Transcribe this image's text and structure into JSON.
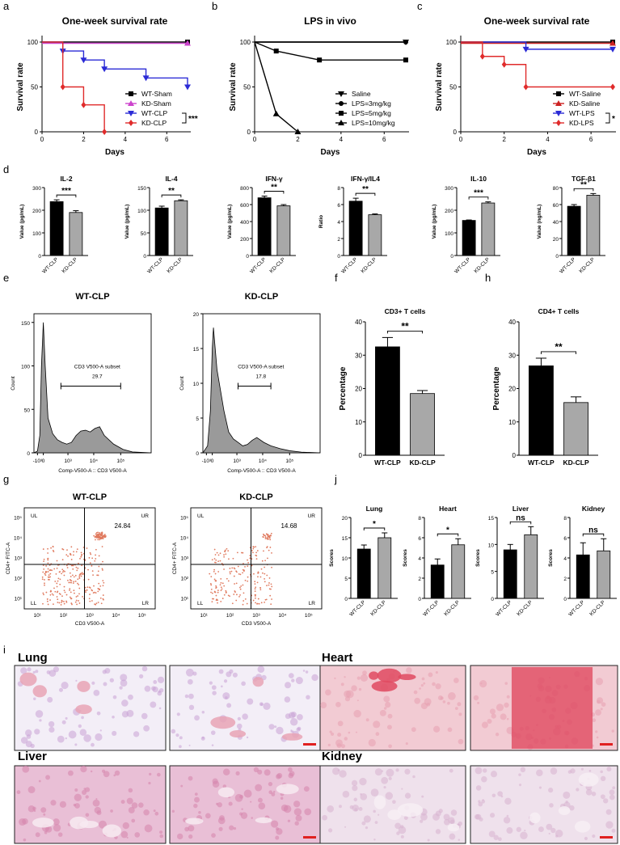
{
  "chart_data": [
    {
      "id": "a",
      "type": "line",
      "panel": "a",
      "title": "One-week survival rate",
      "xlabel": "Days",
      "ylabel": "Survival rate",
      "xlim": [
        0,
        7
      ],
      "ylim": [
        0,
        100
      ],
      "xticks": [
        "0",
        "2",
        "4",
        "6"
      ],
      "yticks": [
        "0",
        "50",
        "100"
      ],
      "series": [
        {
          "name": "WT-Sham",
          "color": "#000000",
          "marker": "square",
          "x": [
            0,
            7
          ],
          "y": [
            100,
            100
          ]
        },
        {
          "name": "KD-Sham",
          "color": "#cc44cc",
          "marker": "triangle",
          "x": [
            0,
            7
          ],
          "y": [
            100,
            100
          ]
        },
        {
          "name": "WT-CLP",
          "color": "#2b2bd6",
          "marker": "triangle-down",
          "x": [
            0,
            1,
            2,
            3,
            5,
            7
          ],
          "y": [
            100,
            90,
            80,
            70,
            60,
            50
          ]
        },
        {
          "name": "KD-CLP",
          "color": "#e02b2b",
          "marker": "diamond",
          "x": [
            0,
            1,
            2,
            3
          ],
          "y": [
            100,
            50,
            30,
            0
          ]
        }
      ],
      "annotation": "***"
    },
    {
      "id": "b",
      "type": "line",
      "panel": "b",
      "title": "LPS in vivo",
      "xlabel": "Days",
      "ylabel": "Survival rate",
      "xlim": [
        0,
        7
      ],
      "ylim": [
        0,
        100
      ],
      "xticks": [
        "0",
        "2",
        "4",
        "6"
      ],
      "yticks": [
        "0",
        "50",
        "100"
      ],
      "series": [
        {
          "name": "Saline",
          "color": "#000000",
          "marker": "triangle-down",
          "x": [
            0,
            7
          ],
          "y": [
            100,
            100
          ]
        },
        {
          "name": "LPS=3mg/kg",
          "color": "#000000",
          "marker": "circle",
          "x": [
            0,
            7
          ],
          "y": [
            100,
            100
          ]
        },
        {
          "name": "LPS=5mg/kg",
          "color": "#000000",
          "marker": "square",
          "x": [
            0,
            1,
            3,
            7
          ],
          "y": [
            100,
            90,
            80,
            80
          ]
        },
        {
          "name": "LPS=10mg/kg",
          "color": "#000000",
          "marker": "triangle",
          "x": [
            0,
            1,
            2
          ],
          "y": [
            100,
            20,
            0
          ]
        }
      ]
    },
    {
      "id": "c",
      "type": "line",
      "panel": "c",
      "title": "One-week survival rate",
      "xlabel": "Days",
      "ylabel": "Survival rate",
      "xlim": [
        0,
        7
      ],
      "ylim": [
        0,
        100
      ],
      "xticks": [
        "0",
        "2",
        "4",
        "6"
      ],
      "yticks": [
        "0",
        "50",
        "100"
      ],
      "series": [
        {
          "name": "WT-Saline",
          "color": "#000000",
          "marker": "square",
          "x": [
            0,
            7
          ],
          "y": [
            100,
            100
          ]
        },
        {
          "name": "KD-Saline",
          "color": "#cc2222",
          "marker": "triangle",
          "x": [
            0,
            7
          ],
          "y": [
            100,
            100
          ]
        },
        {
          "name": "WT-LPS",
          "color": "#2b2bd6",
          "marker": "triangle-down",
          "x": [
            0,
            3,
            7
          ],
          "y": [
            100,
            92,
            92
          ]
        },
        {
          "name": "KD-LPS",
          "color": "#e02b2b",
          "marker": "diamond",
          "x": [
            0,
            1,
            2,
            3,
            7
          ],
          "y": [
            100,
            84,
            75,
            50,
            50
          ]
        }
      ],
      "annotation": "*"
    },
    {
      "id": "d1",
      "type": "bar",
      "panel": "d",
      "title": "IL-2",
      "ylabel": "Value (pg/mL)",
      "categories": [
        "WT-CLP",
        "KD-CLP"
      ],
      "values": [
        238,
        190
      ],
      "errors": [
        8,
        8
      ],
      "ylim": [
        0,
        300
      ],
      "yticks": [
        "0",
        "100",
        "200",
        "300"
      ],
      "annotation": "***"
    },
    {
      "id": "d2",
      "type": "bar",
      "title": "IL-4",
      "ylabel": "Value (pg/mL)",
      "categories": [
        "WT-CLP",
        "KD-CLP"
      ],
      "values": [
        105,
        121
      ],
      "errors": [
        4,
        2
      ],
      "ylim": [
        0,
        150
      ],
      "yticks": [
        "0",
        "50",
        "100",
        "150"
      ],
      "annotation": "**"
    },
    {
      "id": "d3",
      "type": "bar",
      "title": "IFN-γ",
      "ylabel": "Value (pg/mL)",
      "categories": [
        "WT-CLP",
        "KD-CLP"
      ],
      "values": [
        680,
        585
      ],
      "errors": [
        20,
        15
      ],
      "ylim": [
        0,
        800
      ],
      "yticks": [
        "0",
        "200",
        "400",
        "600",
        "800"
      ],
      "annotation": "**"
    },
    {
      "id": "d4",
      "type": "bar",
      "title": "IFN-γ/IL4",
      "ylabel": "Ratio",
      "categories": [
        "WT-CLP",
        "KD-CLP"
      ],
      "values": [
        6.4,
        4.8
      ],
      "errors": [
        0.35,
        0.1
      ],
      "ylim": [
        0,
        8
      ],
      "yticks": [
        "0",
        "2",
        "4",
        "6",
        "8"
      ],
      "annotation": "**"
    },
    {
      "id": "d5",
      "type": "bar",
      "title": "IL-10",
      "ylabel": "Value (pg/mL)",
      "categories": [
        "WT-CLP",
        "KD-CLP"
      ],
      "values": [
        155,
        232
      ],
      "errors": [
        2,
        5
      ],
      "ylim": [
        0,
        300
      ],
      "yticks": [
        "0",
        "100",
        "200",
        "300"
      ],
      "annotation": "***"
    },
    {
      "id": "d6",
      "type": "bar",
      "title": "TGF-β1",
      "ylabel": "Value (ng/mL)",
      "categories": [
        "WT-CLP",
        "KD-CLP"
      ],
      "values": [
        58,
        71
      ],
      "errors": [
        2,
        2
      ],
      "ylim": [
        0,
        80
      ],
      "yticks": [
        "0",
        "20",
        "40",
        "60",
        "80"
      ],
      "annotation": "**"
    },
    {
      "id": "e1",
      "type": "area",
      "panel": "e",
      "title": "WT-CLP",
      "xlabel": "Comp-V500-A :: CD3 V500-A",
      "ylabel": "Count",
      "gate_label": "CD3 V500-A subset",
      "gate_value": "29.7",
      "ylim": [
        0,
        160
      ],
      "yticks": [
        "0",
        "50",
        "100",
        "150"
      ],
      "xticks": [
        "-10³",
        "0",
        "10³",
        "10⁴",
        "10⁵"
      ],
      "x": [
        0,
        0.15,
        0.25,
        0.32,
        0.4,
        0.48,
        0.6,
        0.8,
        1,
        1.2,
        1.4,
        1.6,
        1.8,
        2,
        2.2,
        2.4,
        2.6,
        2.8,
        3,
        3.4,
        3.8,
        4.2,
        5
      ],
      "y": [
        0,
        2,
        20,
        100,
        150,
        100,
        40,
        22,
        15,
        12,
        10,
        12,
        20,
        25,
        26,
        24,
        28,
        30,
        20,
        10,
        4,
        1,
        0
      ]
    },
    {
      "id": "e2",
      "type": "area",
      "title": "KD-CLP",
      "xlabel": "Comp-V500-A :: CD3 V500-A",
      "ylabel": "Count",
      "gate_label": "CD3 V500-A subset",
      "gate_value": "17.8",
      "ylim": [
        0,
        20
      ],
      "yticks": [
        "0",
        "5",
        "10",
        "15",
        "20"
      ],
      "xticks": [
        "-10³",
        "0",
        "10³",
        "10⁴",
        "10⁵"
      ],
      "x": [
        0,
        0.2,
        0.32,
        0.4,
        0.45,
        0.5,
        0.6,
        0.75,
        0.9,
        1.1,
        1.3,
        1.5,
        1.7,
        1.9,
        2.1,
        2.3,
        2.6,
        2.9,
        3.3,
        3.7,
        4.2,
        5
      ],
      "y": [
        0,
        1,
        6,
        15,
        18,
        16,
        12,
        9,
        6,
        3,
        2,
        1.5,
        1,
        1.2,
        1.8,
        2.2,
        1.5,
        1,
        0.6,
        0.3,
        0.1,
        0
      ]
    },
    {
      "id": "f",
      "type": "bar",
      "panel": "f",
      "title": "CD3+ T cells",
      "ylabel": "Percentage",
      "categories": [
        "WT-CLP",
        "KD-CLP"
      ],
      "values": [
        32.5,
        18.5
      ],
      "errors": [
        2.8,
        0.9
      ],
      "ylim": [
        0,
        40
      ],
      "yticks": [
        "0",
        "10",
        "20",
        "30",
        "40"
      ],
      "annotation": "**"
    },
    {
      "id": "h",
      "type": "bar",
      "panel": "h",
      "title": "CD4+ T cells",
      "ylabel": "Percentage",
      "categories": [
        "WT-CLP",
        "KD-CLP"
      ],
      "values": [
        26.8,
        15.8
      ],
      "errors": [
        2.3,
        1.7
      ],
      "ylim": [
        0,
        40
      ],
      "yticks": [
        "0",
        "10",
        "20",
        "30",
        "40"
      ],
      "annotation": "**"
    },
    {
      "id": "g1",
      "type": "scatter",
      "panel": "g",
      "title": "WT-CLP",
      "xlabel": "CD3 V500-A",
      "ylabel": "CD4+ FITC-A",
      "value": "24.84",
      "quadrants": [
        "UL",
        "UR",
        "LL",
        "LR"
      ],
      "xticks": [
        "10¹",
        "10²",
        "10³",
        "10⁴",
        "10⁵"
      ],
      "yticks": [
        "10¹",
        "10²",
        "10³",
        "10⁴",
        "10⁵"
      ]
    },
    {
      "id": "g2",
      "type": "scatter",
      "title": "KD-CLP",
      "xlabel": "CD3 V500-A",
      "ylabel": "CD4+ FITC-A",
      "value": "14.68",
      "quadrants": [
        "UL",
        "UR",
        "LL",
        "LR"
      ],
      "xticks": [
        "10¹",
        "10²",
        "10³",
        "10⁴",
        "10⁵"
      ],
      "yticks": [
        "10¹",
        "10²",
        "10³",
        "10⁴",
        "10⁵"
      ]
    },
    {
      "id": "j1",
      "type": "bar",
      "panel": "j",
      "title": "Lung",
      "ylabel": "Scores",
      "categories": [
        "WT-CLP",
        "KD-CLP"
      ],
      "values": [
        12.2,
        15
      ],
      "errors": [
        1,
        1.2
      ],
      "ylim": [
        0,
        20
      ],
      "yticks": [
        "0",
        "5",
        "10",
        "15",
        "20"
      ],
      "annotation": "*"
    },
    {
      "id": "j2",
      "type": "bar",
      "title": "Heart",
      "ylabel": "Scores",
      "categories": [
        "WT-CLP",
        "KD-CLP"
      ],
      "values": [
        3.3,
        5.3
      ],
      "errors": [
        0.6,
        0.6
      ],
      "ylim": [
        0,
        8
      ],
      "yticks": [
        "0",
        "2",
        "4",
        "6",
        "8"
      ],
      "annotation": "*"
    },
    {
      "id": "j3",
      "type": "bar",
      "title": "Liver",
      "ylabel": "Scores",
      "categories": [
        "WT-CLP",
        "KD-CLP"
      ],
      "values": [
        9,
        11.8
      ],
      "errors": [
        1,
        1.5
      ],
      "ylim": [
        0,
        15
      ],
      "yticks": [
        "0",
        "5",
        "10",
        "15"
      ],
      "annotation": "ns"
    },
    {
      "id": "j4",
      "type": "bar",
      "title": "Kidney",
      "ylabel": "Scores",
      "categories": [
        "WT-CLP",
        "KD-CLP"
      ],
      "values": [
        4.3,
        4.7
      ],
      "errors": [
        1.2,
        1.2
      ],
      "ylim": [
        0,
        8
      ],
      "yticks": [
        "0",
        "2",
        "4",
        "6",
        "8"
      ],
      "annotation": "ns"
    }
  ],
  "histology": {
    "panel": "i",
    "groups": [
      {
        "name": "Lung",
        "colors": [
          "#f3eef7",
          "#c9a3d6",
          "#e8a3b5"
        ]
      },
      {
        "name": "Heart",
        "colors": [
          "#f2cbd3",
          "#e7a1b1",
          "#e04a60"
        ]
      },
      {
        "name": "Liver",
        "colors": [
          "#e9bfd6",
          "#d583ac",
          "#f7eaf1"
        ]
      },
      {
        "name": "Kidney",
        "colors": [
          "#efe1ec",
          "#d7b2cf",
          "#f7eff5"
        ]
      }
    ]
  }
}
